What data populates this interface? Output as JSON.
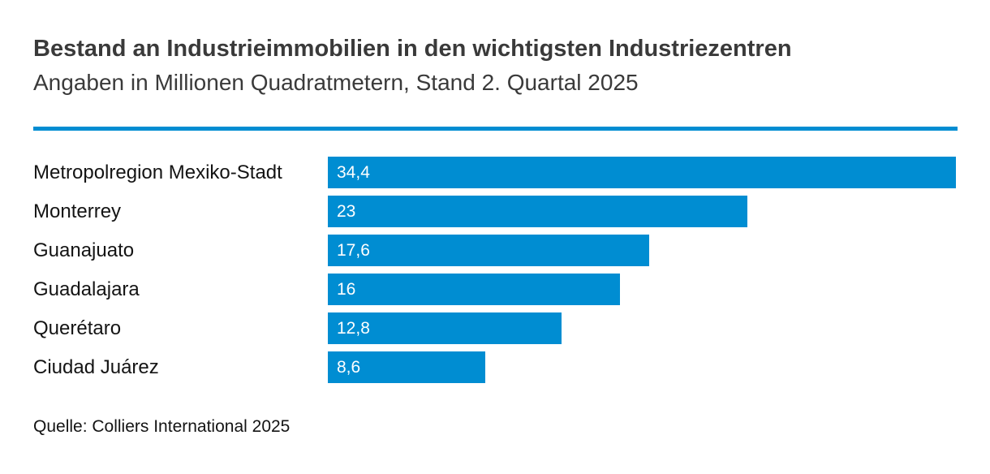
{
  "header": {
    "title": "Bestand an Industrieimmobilien in den wichtigsten Industriezentren",
    "subtitle": "Angaben in Millionen Quadratmetern, Stand 2. Quartal 2025"
  },
  "footer": {
    "source": "Quelle: Colliers International 2025"
  },
  "colors": {
    "accent": "#008dd2",
    "title": "#3a3a3a",
    "label": "#141414",
    "value_text": "#ffffff",
    "background": "#ffffff"
  },
  "chart_data": {
    "type": "bar",
    "orientation": "horizontal",
    "title": "Bestand an Industrieimmobilien in den wichtigsten Industriezentren",
    "subtitle": "Angaben in Millionen Quadratmetern, Stand 2. Quartal 2025",
    "unit": "Millionen Quadratmeter",
    "categories": [
      "Metropolregion Mexiko-Stadt",
      "Monterrey",
      "Guanajuato",
      "Guadalajara",
      "Querétaro",
      "Ciudad Juárez"
    ],
    "values": [
      34.4,
      23,
      17.6,
      16,
      12.8,
      8.6
    ],
    "value_labels": [
      "34,4",
      "23",
      "17,6",
      "16",
      "12,8",
      "8,6"
    ],
    "xlim": [
      0,
      34.4
    ],
    "grid": false,
    "legend": false,
    "value_label_position": "inside-start",
    "source": "Quelle: Colliers International 2025"
  }
}
